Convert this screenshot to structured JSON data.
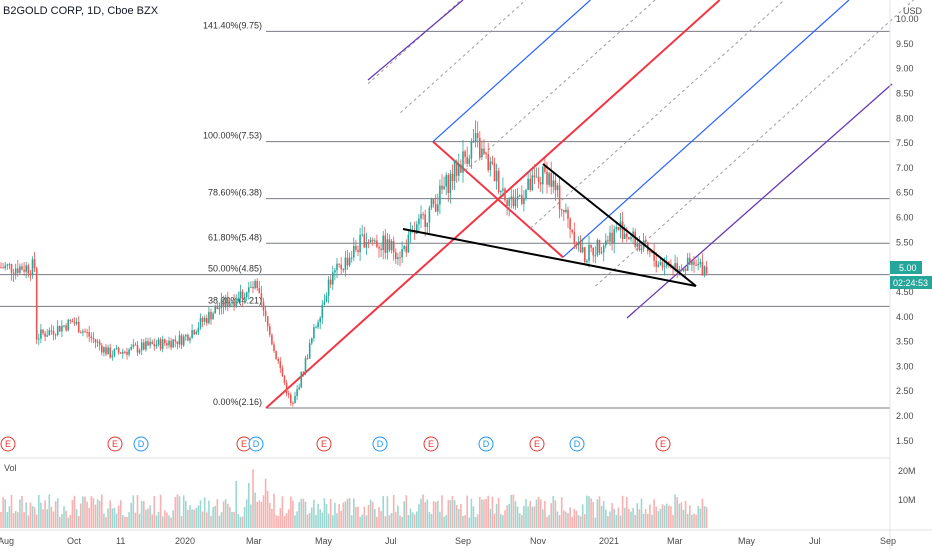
{
  "header": {
    "symbol_title": "B2GOLD CORP, 1D, Cboe BZX",
    "currency": "USD"
  },
  "price_axis": {
    "ticks": [
      "10.00",
      "9.50",
      "9.00",
      "8.50",
      "8.00",
      "7.50",
      "7.00",
      "6.50",
      "6.00",
      "5.50",
      "5.00",
      "4.50",
      "4.00",
      "3.50",
      "3.00",
      "2.50",
      "2.00",
      "1.50"
    ],
    "last_price": "5.00",
    "countdown": "02:24:53",
    "last_price_color": "#26a69a"
  },
  "time_axis": {
    "ticks": [
      "Aug",
      "Oct",
      "11",
      "2020",
      "Mar",
      "May",
      "Jul",
      "Sep",
      "Nov",
      "2021",
      "Mar",
      "May",
      "Jul",
      "Sep"
    ]
  },
  "volume_pane": {
    "label": "Vol",
    "ticks": [
      "20M",
      "10M"
    ]
  },
  "fib_levels": [
    {
      "label": "141.40%(9.75)",
      "price": 9.75
    },
    {
      "label": "100.00%(7.53)",
      "price": 7.53
    },
    {
      "label": "78.60%(6.38)",
      "price": 6.38
    },
    {
      "label": "61.80%(5.48)",
      "price": 5.48
    },
    {
      "label": "50.00%(4.85)",
      "price": 4.85
    },
    {
      "label": "38.20%(4.21)",
      "price": 4.21
    },
    {
      "label": "0.00%(2.16)",
      "price": 2.16
    }
  ],
  "events": [
    {
      "label": "E",
      "kind": "earnings",
      "color": "#e53935"
    },
    {
      "label": "E",
      "kind": "earnings",
      "color": "#e53935"
    },
    {
      "label": "D",
      "kind": "dividend",
      "color": "#2196f3"
    },
    {
      "label": "E",
      "kind": "earnings",
      "color": "#e53935"
    },
    {
      "label": "D",
      "kind": "dividend",
      "color": "#2196f3"
    },
    {
      "label": "E",
      "kind": "earnings",
      "color": "#e53935"
    },
    {
      "label": "D",
      "kind": "dividend",
      "color": "#2196f3"
    },
    {
      "label": "E",
      "kind": "earnings",
      "color": "#e53935"
    },
    {
      "label": "D",
      "kind": "dividend",
      "color": "#2196f3"
    },
    {
      "label": "E",
      "kind": "earnings",
      "color": "#e53935"
    },
    {
      "label": "D",
      "kind": "dividend",
      "color": "#2196f3"
    },
    {
      "label": "E",
      "kind": "earnings",
      "color": "#e53935"
    }
  ],
  "colors": {
    "up": "#26a69a",
    "down": "#ef5350",
    "pitchfork_median": "#f23645",
    "pitchfork_inner": "#2962ff",
    "pitchfork_outer": "#673ab7",
    "wedge": "#000000",
    "fib_line": "#787b86"
  },
  "chart_data": {
    "type": "candlestick",
    "title": "B2GOLD CORP, 1D, Cboe BZX",
    "y_unit": "USD",
    "ylim": [
      1.3,
      10.25
    ],
    "x_range": [
      "2019-08",
      "2021-09"
    ],
    "swing_points": [
      {
        "date": "2019-08",
        "close": 3.6
      },
      {
        "date": "2019-09",
        "close": 3.9
      },
      {
        "date": "2019-10",
        "close": 3.25
      },
      {
        "date": "2019-12",
        "close": 3.55
      },
      {
        "date": "2020-01",
        "close": 4.2
      },
      {
        "date": "2020-02",
        "close": 4.6
      },
      {
        "date": "2020-03",
        "close": 2.16
      },
      {
        "date": "2020-04",
        "close": 4.7
      },
      {
        "date": "2020-05",
        "close": 5.6
      },
      {
        "date": "2020-06",
        "close": 5.3
      },
      {
        "date": "2020-07",
        "close": 6.4
      },
      {
        "date": "2020-08",
        "close": 7.53
      },
      {
        "date": "2020-09",
        "close": 6.3
      },
      {
        "date": "2020-10",
        "close": 6.9
      },
      {
        "date": "2020-11",
        "close": 5.2
      },
      {
        "date": "2020-12",
        "close": 5.8
      },
      {
        "date": "2021-01",
        "close": 5.1
      },
      {
        "date": "2021-02",
        "close": 5.0
      }
    ],
    "volume_range": [
      0,
      24000000
    ]
  }
}
